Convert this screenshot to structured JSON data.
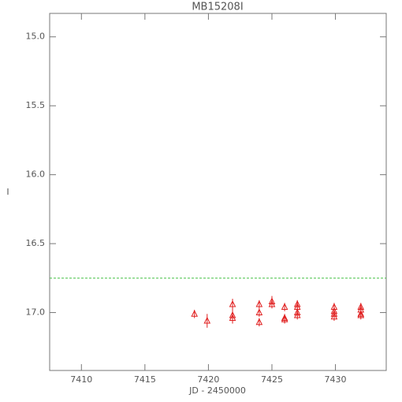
{
  "chart_data": {
    "type": "scatter",
    "title": "MB15208I",
    "x_label": "JD - 2450000",
    "y_label": "I",
    "x": [
      7418.9,
      7419.9,
      7421.9,
      7421.9,
      7421.9,
      7424.0,
      7424.0,
      7424.0,
      7425.0,
      7425.0,
      7426.0,
      7426.0,
      7426.0,
      7427.0,
      7427.0,
      7427.0,
      7427.0,
      7429.9,
      7429.9,
      7429.9,
      7429.9,
      7432.0,
      7432.0,
      7432.0,
      7432.0
    ],
    "series": [
      {
        "name": "I",
        "color": "#e02020",
        "values": [
          17.01,
          17.06,
          16.94,
          17.02,
          17.04,
          16.94,
          17.0,
          17.07,
          16.92,
          16.94,
          16.96,
          17.04,
          17.05,
          16.94,
          16.96,
          17.0,
          17.02,
          16.96,
          16.99,
          17.01,
          17.03,
          16.96,
          16.98,
          17.01,
          17.02
        ],
        "errors": [
          0.03,
          0.05,
          0.04,
          0.04,
          0.04,
          0.03,
          0.03,
          0.03,
          0.04,
          0.03,
          0.03,
          0.03,
          0.03,
          0.03,
          0.03,
          0.03,
          0.03,
          0.03,
          0.03,
          0.03,
          0.03,
          0.03,
          0.03,
          0.03,
          0.03
        ]
      }
    ],
    "reference_line": {
      "value": 16.75,
      "color": "#40c040"
    },
    "xlim": [
      7407.5,
      7434.0
    ],
    "xticks": [
      7410,
      7415,
      7420,
      7425,
      7430
    ],
    "ylim": [
      17.42,
      14.83
    ],
    "yticks": [
      {
        "value": 15,
        "label": "15.0"
      },
      {
        "value": 15.5,
        "label": "15.5"
      },
      {
        "value": 16,
        "label": "16.0"
      },
      {
        "value": 16.5,
        "label": "16.5"
      },
      {
        "value": 17,
        "label": "17.0"
      }
    ],
    "inverted_y": true
  }
}
